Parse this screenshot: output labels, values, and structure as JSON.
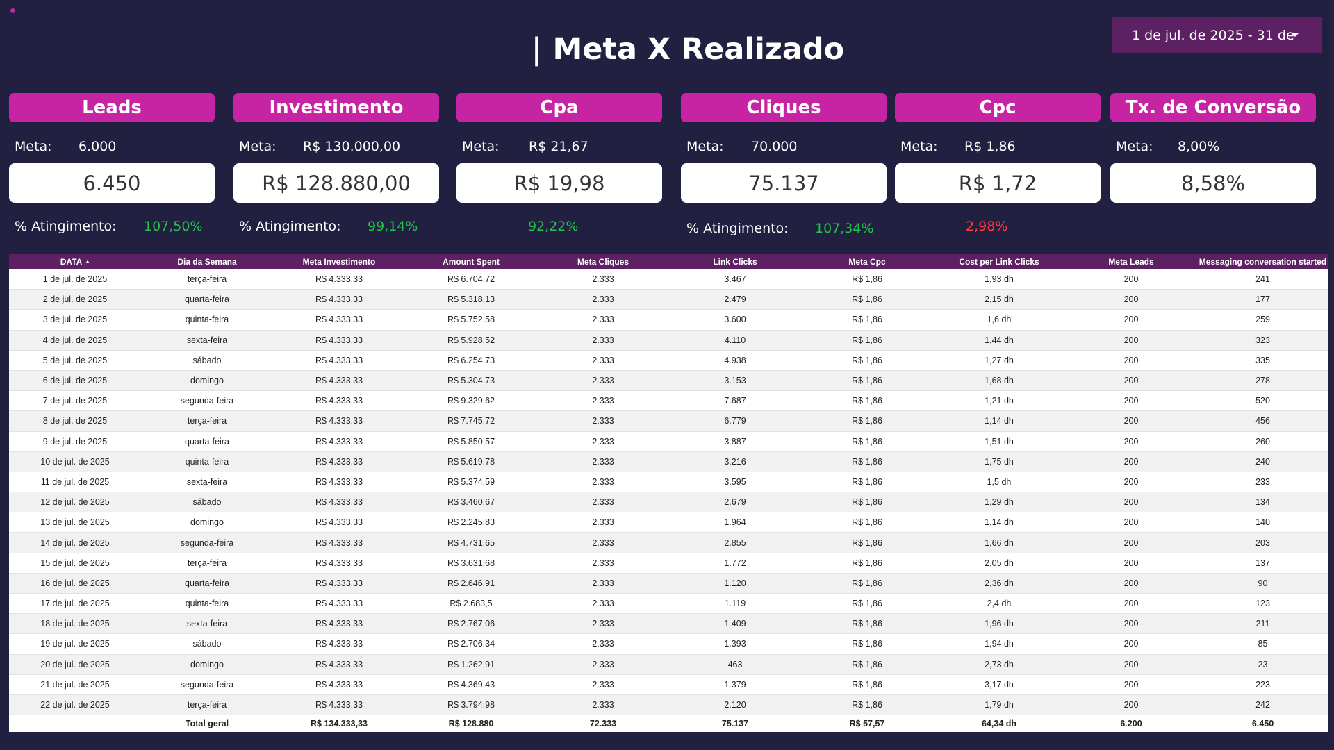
{
  "title": "| Meta X Realizado",
  "date_range": "1 de jul. de 2025 - 31 de",
  "kpis": [
    {
      "label": "Leads",
      "meta_label": "Meta:",
      "meta": "6.000",
      "value": "6.450",
      "ating_label": "% Atingimento:",
      "pct": "107,50%",
      "pct_status": "good"
    },
    {
      "label": "Investimento",
      "meta_label": "Meta:",
      "meta": "R$ 130.000,00",
      "value": "R$ 128.880,00",
      "ating_label": "% Atingimento:",
      "pct": "99,14%",
      "pct_status": "good"
    },
    {
      "label": "Cpa",
      "meta_label": "Meta:",
      "meta": "R$ 21,67",
      "value": "R$ 19,98",
      "ating_label": "",
      "pct": "92,22%",
      "pct_status": "good"
    },
    {
      "label": "Cliques",
      "meta_label": "Meta:",
      "meta": "70.000",
      "value": "75.137",
      "ating_label": "% Atingimento:",
      "pct": "107,34%",
      "pct_status": "good"
    },
    {
      "label": "Cpc",
      "meta_label": "Meta:",
      "meta": "R$ 1,86",
      "value": "R$ 1,72",
      "ating_label": "",
      "pct": "2,98%",
      "pct_status": "bad"
    },
    {
      "label": "Tx. de Conversão",
      "meta_label": "Meta:",
      "meta": "8,00%",
      "value": "8,58%",
      "ating_label": "",
      "pct": "",
      "pct_status": ""
    }
  ],
  "colors": {
    "background": "#222040",
    "accent": "#c724a4",
    "header": "#5d2063",
    "good": "#23c14a",
    "bad": "#ff3b3b"
  },
  "table": {
    "columns": [
      "DATA",
      "Dia da Semana",
      "Meta Investimento",
      "Amount Spent",
      "Meta Cliques",
      "Link Clicks",
      "Meta Cpc",
      "Cost per Link Clicks",
      "Meta Leads",
      "Messaging conversation started"
    ],
    "sorted_by": "DATA",
    "rows": [
      [
        "1 de jul. de 2025",
        "terça-feira",
        "R$ 4.333,33",
        "R$ 6.704,72",
        "2.333",
        "3.467",
        "R$ 1,86",
        "1,93 dh",
        "200",
        "241"
      ],
      [
        "2 de jul. de 2025",
        "quarta-feira",
        "R$ 4.333,33",
        "R$ 5.318,13",
        "2.333",
        "2.479",
        "R$ 1,86",
        "2,15 dh",
        "200",
        "177"
      ],
      [
        "3 de jul. de 2025",
        "quinta-feira",
        "R$ 4.333,33",
        "R$ 5.752,58",
        "2.333",
        "3.600",
        "R$ 1,86",
        "1,6 dh",
        "200",
        "259"
      ],
      [
        "4 de jul. de 2025",
        "sexta-feira",
        "R$ 4.333,33",
        "R$ 5.928,52",
        "2.333",
        "4.110",
        "R$ 1,86",
        "1,44 dh",
        "200",
        "323"
      ],
      [
        "5 de jul. de 2025",
        "sábado",
        "R$ 4.333,33",
        "R$ 6.254,73",
        "2.333",
        "4.938",
        "R$ 1,86",
        "1,27 dh",
        "200",
        "335"
      ],
      [
        "6 de jul. de 2025",
        "domingo",
        "R$ 4.333,33",
        "R$ 5.304,73",
        "2.333",
        "3.153",
        "R$ 1,86",
        "1,68 dh",
        "200",
        "278"
      ],
      [
        "7 de jul. de 2025",
        "segunda-feira",
        "R$ 4.333,33",
        "R$ 9.329,62",
        "2.333",
        "7.687",
        "R$ 1,86",
        "1,21 dh",
        "200",
        "520"
      ],
      [
        "8 de jul. de 2025",
        "terça-feira",
        "R$ 4.333,33",
        "R$ 7.745,72",
        "2.333",
        "6.779",
        "R$ 1,86",
        "1,14 dh",
        "200",
        "456"
      ],
      [
        "9 de jul. de 2025",
        "quarta-feira",
        "R$ 4.333,33",
        "R$ 5.850,57",
        "2.333",
        "3.887",
        "R$ 1,86",
        "1,51 dh",
        "200",
        "260"
      ],
      [
        "10 de jul. de 2025",
        "quinta-feira",
        "R$ 4.333,33",
        "R$ 5.619,78",
        "2.333",
        "3.216",
        "R$ 1,86",
        "1,75 dh",
        "200",
        "240"
      ],
      [
        "11 de jul. de 2025",
        "sexta-feira",
        "R$ 4.333,33",
        "R$ 5.374,59",
        "2.333",
        "3.595",
        "R$ 1,86",
        "1,5 dh",
        "200",
        "233"
      ],
      [
        "12 de jul. de 2025",
        "sábado",
        "R$ 4.333,33",
        "R$ 3.460,67",
        "2.333",
        "2.679",
        "R$ 1,86",
        "1,29 dh",
        "200",
        "134"
      ],
      [
        "13 de jul. de 2025",
        "domingo",
        "R$ 4.333,33",
        "R$ 2.245,83",
        "2.333",
        "1.964",
        "R$ 1,86",
        "1,14 dh",
        "200",
        "140"
      ],
      [
        "14 de jul. de 2025",
        "segunda-feira",
        "R$ 4.333,33",
        "R$ 4.731,65",
        "2.333",
        "2.855",
        "R$ 1,86",
        "1,66 dh",
        "200",
        "203"
      ],
      [
        "15 de jul. de 2025",
        "terça-feira",
        "R$ 4.333,33",
        "R$ 3.631,68",
        "2.333",
        "1.772",
        "R$ 1,86",
        "2,05 dh",
        "200",
        "137"
      ],
      [
        "16 de jul. de 2025",
        "quarta-feira",
        "R$ 4.333,33",
        "R$ 2.646,91",
        "2.333",
        "1.120",
        "R$ 1,86",
        "2,36 dh",
        "200",
        "90"
      ],
      [
        "17 de jul. de 2025",
        "quinta-feira",
        "R$ 4.333,33",
        "R$ 2.683,5",
        "2.333",
        "1.119",
        "R$ 1,86",
        "2,4 dh",
        "200",
        "123"
      ],
      [
        "18 de jul. de 2025",
        "sexta-feira",
        "R$ 4.333,33",
        "R$ 2.767,06",
        "2.333",
        "1.409",
        "R$ 1,86",
        "1,96 dh",
        "200",
        "211"
      ],
      [
        "19 de jul. de 2025",
        "sábado",
        "R$ 4.333,33",
        "R$ 2.706,34",
        "2.333",
        "1.393",
        "R$ 1,86",
        "1,94 dh",
        "200",
        "85"
      ],
      [
        "20 de jul. de 2025",
        "domingo",
        "R$ 4.333,33",
        "R$ 1.262,91",
        "2.333",
        "463",
        "R$ 1,86",
        "2,73 dh",
        "200",
        "23"
      ],
      [
        "21 de jul. de 2025",
        "segunda-feira",
        "R$ 4.333,33",
        "R$ 4.369,43",
        "2.333",
        "1.379",
        "R$ 1,86",
        "3,17 dh",
        "200",
        "223"
      ],
      [
        "22 de jul. de 2025",
        "terça-feira",
        "R$ 4.333,33",
        "R$ 3.794,98",
        "2.333",
        "2.120",
        "R$ 1,86",
        "1,79 dh",
        "200",
        "242"
      ]
    ],
    "totals": [
      "",
      "Total geral",
      "R$ 134.333,33",
      "R$ 128.880",
      "72.333",
      "75.137",
      "R$ 57,57",
      "64,34 dh",
      "6.200",
      "6.450"
    ]
  }
}
